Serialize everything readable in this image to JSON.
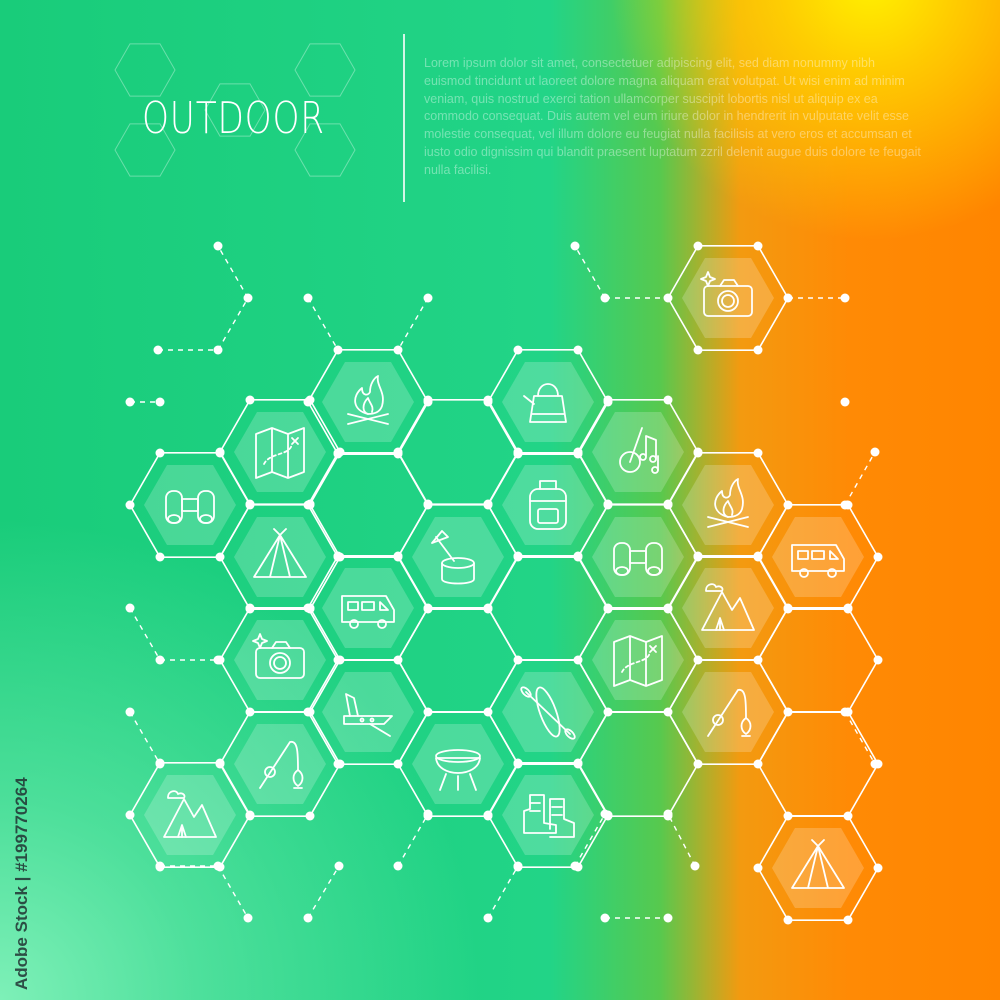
{
  "header": {
    "title": "OUTDOOR",
    "body": "Lorem ipsum dolor sit amet, consectetuer adipiscing elit, sed diam nonummy nibh euismod tincidunt ut laoreet dolore magna aliquam erat volutpat. Ut wisi enim ad minim veniam, quis nostrud exerci tation ullamcorper suscipit lobortis nisl ut aliquip ex ea commodo consequat. Duis autem vel eum iriure dolor in hendrerit in vulputate velit esse molestie consequat, vel illum dolore eu feugiat nulla facilisis at vero eros et accumsan et iusto odio dignissim qui blandit praesent luptatum zzril delenit augue duis dolore te feugait nulla facilisi."
  },
  "watermark": "Adobe Stock | #199770264",
  "colors": {
    "green": "#1fcf7a",
    "orange": "#ff8a05",
    "yellow": "#fff200",
    "line": "#ffffff"
  },
  "icons": [
    "camera",
    "campfire",
    "kettle",
    "map",
    "guitar",
    "binoculars",
    "campfire",
    "backpack",
    "tent",
    "axe-stump",
    "binoculars",
    "camper",
    "camper",
    "mountains",
    "camera",
    "map",
    "knife",
    "kayak",
    "fishing-rod",
    "fishing-rod",
    "grill",
    "mountains",
    "boots",
    "tent"
  ]
}
